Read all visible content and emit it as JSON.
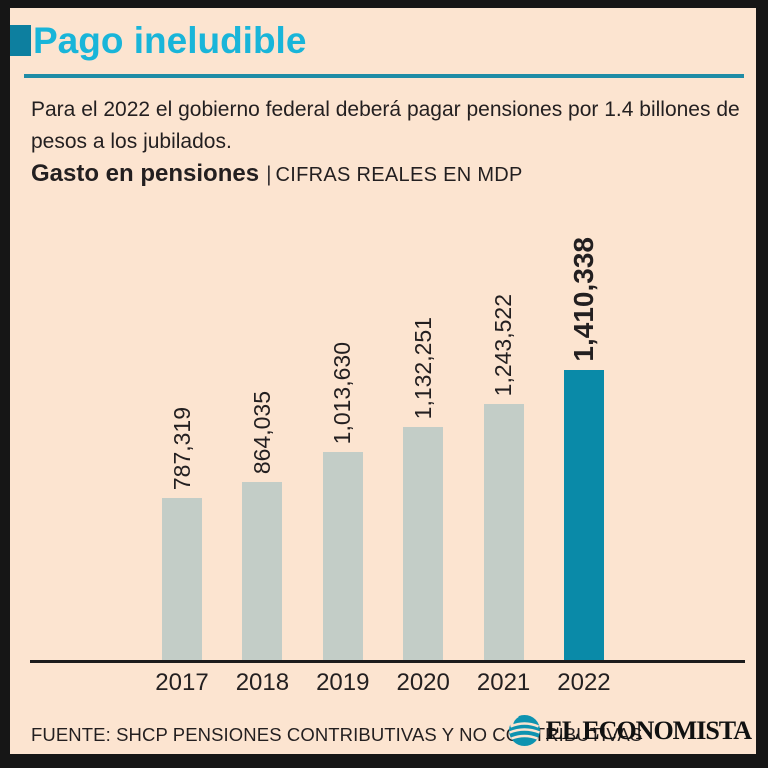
{
  "header": {
    "title": "Pago ineludible",
    "intro_lines": [
      "Para el 2022 el gobierno federal deberá pagar pensiones por 1.4 billones de",
      "pesos a los jubilados."
    ]
  },
  "chart_header": {
    "title": "Gasto en pensiones",
    "separator": "|",
    "subtitle": "CIFRAS REALES EN MDP"
  },
  "chart_data": {
    "type": "bar",
    "title": "Gasto en pensiones",
    "subtitle": "CIFRAS REALES EN MDP",
    "categories": [
      "2017",
      "2018",
      "2019",
      "2020",
      "2021",
      "2022"
    ],
    "values": [
      787319,
      864035,
      1013630,
      1132251,
      1243522,
      1410338
    ],
    "value_labels": [
      "787,319",
      "864,035",
      "1,013,630",
      "1,132,251",
      "1,243,522",
      "1,410,338"
    ],
    "value_label_rotation": 90,
    "highlight_index": 5,
    "bar_color": "#c3cdc7",
    "highlight_color": "#0a8aa8",
    "ylim": [
      0,
      1410338
    ],
    "grid": false,
    "legend": false
  },
  "footer": {
    "source": "FUENTE: SHCP PENSIONES CONTRIBUTIVAS Y NO CONTRIBUTIVAS",
    "brand": "EL ECONOMISTA"
  },
  "colors": {
    "background": "#fce4d0",
    "frame_border": "#161616",
    "title_accent": "#19b5d9",
    "marker": "#0d7f9f",
    "rule": "#1f8ca6",
    "text": "#231f20",
    "bar": "#c3cdc7",
    "highlight_bar": "#0a8aa8",
    "axis": "#1c1c1c",
    "logo": "#0e93b0"
  }
}
